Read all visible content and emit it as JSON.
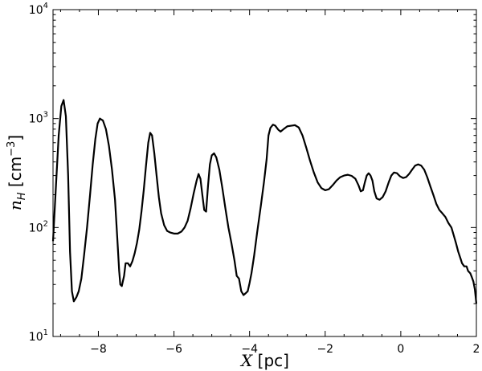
{
  "chart_data": {
    "type": "line",
    "xlabel_var": "X",
    "xlabel_unit": "[pc]",
    "ylabel_var": "n",
    "ylabel_sub": "H",
    "ylabel_unit": "[cm",
    "ylabel_unit_exp": "−3",
    "ylabel_unit_close": "]",
    "xlim": [
      -9.2,
      2.0
    ],
    "ylim": [
      10,
      10000
    ],
    "yscale": "log",
    "grid": false,
    "line_color": "#000000",
    "x_ticks": [
      {
        "value": -8,
        "label": "−8"
      },
      {
        "value": -6,
        "label": "−6"
      },
      {
        "value": -4,
        "label": "−4"
      },
      {
        "value": -2,
        "label": "−2"
      },
      {
        "value": 0,
        "label": "0"
      },
      {
        "value": 2,
        "label": "2"
      }
    ],
    "y_ticks": [
      {
        "value": 10,
        "base": "10",
        "exp": "1"
      },
      {
        "value": 100,
        "base": "10",
        "exp": "2"
      },
      {
        "value": 1000,
        "base": "10",
        "exp": "3"
      },
      {
        "value": 10000,
        "base": "10",
        "exp": "4"
      }
    ],
    "series": [
      {
        "points": [
          [
            -9.2,
            75
          ],
          [
            -9.12,
            250
          ],
          [
            -9.05,
            700
          ],
          [
            -8.98,
            1300
          ],
          [
            -8.92,
            1480
          ],
          [
            -8.86,
            1050
          ],
          [
            -8.8,
            300
          ],
          [
            -8.75,
            60
          ],
          [
            -8.7,
            26
          ],
          [
            -8.65,
            21
          ],
          [
            -8.58,
            23
          ],
          [
            -8.52,
            26
          ],
          [
            -8.45,
            34
          ],
          [
            -8.38,
            55
          ],
          [
            -8.3,
            100
          ],
          [
            -8.22,
            200
          ],
          [
            -8.15,
            380
          ],
          [
            -8.08,
            650
          ],
          [
            -8.02,
            900
          ],
          [
            -7.96,
            1000
          ],
          [
            -7.88,
            960
          ],
          [
            -7.8,
            800
          ],
          [
            -7.72,
            560
          ],
          [
            -7.64,
            340
          ],
          [
            -7.56,
            180
          ],
          [
            -7.5,
            80
          ],
          [
            -7.45,
            40
          ],
          [
            -7.42,
            30
          ],
          [
            -7.38,
            29
          ],
          [
            -7.32,
            36
          ],
          [
            -7.28,
            47
          ],
          [
            -7.22,
            47
          ],
          [
            -7.16,
            44
          ],
          [
            -7.1,
            49
          ],
          [
            -7.04,
            58
          ],
          [
            -6.98,
            72
          ],
          [
            -6.92,
            95
          ],
          [
            -6.86,
            140
          ],
          [
            -6.8,
            220
          ],
          [
            -6.74,
            370
          ],
          [
            -6.68,
            600
          ],
          [
            -6.63,
            740
          ],
          [
            -6.58,
            700
          ],
          [
            -6.52,
            480
          ],
          [
            -6.46,
            300
          ],
          [
            -6.4,
            190
          ],
          [
            -6.34,
            135
          ],
          [
            -6.26,
            105
          ],
          [
            -6.18,
            93
          ],
          [
            -6.1,
            90
          ],
          [
            -6.0,
            88
          ],
          [
            -5.9,
            88
          ],
          [
            -5.8,
            92
          ],
          [
            -5.72,
            100
          ],
          [
            -5.64,
            115
          ],
          [
            -5.56,
            150
          ],
          [
            -5.48,
            205
          ],
          [
            -5.4,
            270
          ],
          [
            -5.35,
            310
          ],
          [
            -5.3,
            280
          ],
          [
            -5.25,
            200
          ],
          [
            -5.2,
            145
          ],
          [
            -5.15,
            140
          ],
          [
            -5.1,
            240
          ],
          [
            -5.05,
            380
          ],
          [
            -5.0,
            460
          ],
          [
            -4.94,
            480
          ],
          [
            -4.88,
            440
          ],
          [
            -4.8,
            340
          ],
          [
            -4.72,
            230
          ],
          [
            -4.64,
            150
          ],
          [
            -4.56,
            100
          ],
          [
            -4.48,
            72
          ],
          [
            -4.4,
            50
          ],
          [
            -4.34,
            36
          ],
          [
            -4.28,
            34
          ],
          [
            -4.22,
            26
          ],
          [
            -4.16,
            24
          ],
          [
            -4.1,
            25
          ],
          [
            -4.05,
            26
          ],
          [
            -4.0,
            31
          ],
          [
            -3.95,
            38
          ],
          [
            -3.88,
            55
          ],
          [
            -3.8,
            90
          ],
          [
            -3.7,
            160
          ],
          [
            -3.62,
            260
          ],
          [
            -3.55,
            420
          ],
          [
            -3.5,
            700
          ],
          [
            -3.45,
            820
          ],
          [
            -3.38,
            880
          ],
          [
            -3.32,
            860
          ],
          [
            -3.24,
            790
          ],
          [
            -3.18,
            760
          ],
          [
            -3.1,
            800
          ],
          [
            -3.0,
            850
          ],
          [
            -2.9,
            860
          ],
          [
            -2.8,
            870
          ],
          [
            -2.7,
            830
          ],
          [
            -2.6,
            700
          ],
          [
            -2.5,
            540
          ],
          [
            -2.4,
            410
          ],
          [
            -2.3,
            320
          ],
          [
            -2.2,
            260
          ],
          [
            -2.1,
            230
          ],
          [
            -2.0,
            220
          ],
          [
            -1.9,
            225
          ],
          [
            -1.8,
            245
          ],
          [
            -1.7,
            270
          ],
          [
            -1.6,
            290
          ],
          [
            -1.5,
            300
          ],
          [
            -1.4,
            305
          ],
          [
            -1.3,
            298
          ],
          [
            -1.2,
            280
          ],
          [
            -1.12,
            245
          ],
          [
            -1.06,
            215
          ],
          [
            -1.0,
            220
          ],
          [
            -0.95,
            260
          ],
          [
            -0.9,
            300
          ],
          [
            -0.85,
            315
          ],
          [
            -0.8,
            300
          ],
          [
            -0.75,
            270
          ],
          [
            -0.7,
            215
          ],
          [
            -0.64,
            185
          ],
          [
            -0.56,
            180
          ],
          [
            -0.48,
            190
          ],
          [
            -0.4,
            215
          ],
          [
            -0.32,
            260
          ],
          [
            -0.25,
            300
          ],
          [
            -0.18,
            320
          ],
          [
            -0.1,
            315
          ],
          [
            -0.02,
            295
          ],
          [
            0.06,
            285
          ],
          [
            0.14,
            290
          ],
          [
            0.22,
            310
          ],
          [
            0.3,
            340
          ],
          [
            0.38,
            370
          ],
          [
            0.46,
            380
          ],
          [
            0.54,
            370
          ],
          [
            0.62,
            340
          ],
          [
            0.7,
            290
          ],
          [
            0.78,
            240
          ],
          [
            0.86,
            200
          ],
          [
            0.94,
            165
          ],
          [
            1.02,
            145
          ],
          [
            1.1,
            135
          ],
          [
            1.18,
            125
          ],
          [
            1.26,
            110
          ],
          [
            1.34,
            100
          ],
          [
            1.4,
            85
          ],
          [
            1.46,
            72
          ],
          [
            1.52,
            60
          ],
          [
            1.58,
            52
          ],
          [
            1.62,
            47
          ],
          [
            1.68,
            44
          ],
          [
            1.74,
            44
          ],
          [
            1.78,
            40
          ],
          [
            1.84,
            38
          ],
          [
            1.88,
            35
          ],
          [
            1.92,
            32
          ],
          [
            1.96,
            27
          ],
          [
            2.0,
            20
          ]
        ]
      }
    ]
  }
}
